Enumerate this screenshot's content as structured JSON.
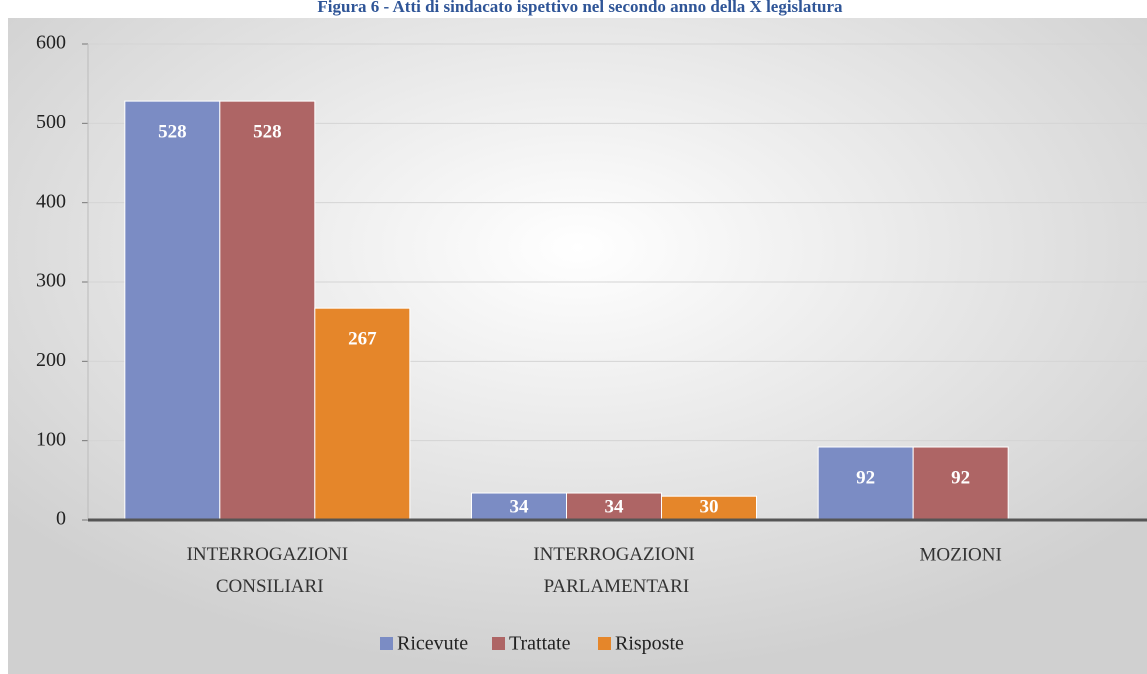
{
  "chart_data": {
    "type": "bar",
    "title": "Figura 6 - Atti di sindacato ispettivo nel secondo anno della X legislatura",
    "categories": [
      "INTERROGAZIONI CONSILIARI",
      "INTERROGAZIONI PARLAMENTARI",
      "MOZIONI"
    ],
    "series": [
      {
        "name": "Ricevute",
        "color": "#7b8cc4",
        "values": [
          528,
          34,
          92
        ]
      },
      {
        "name": "Trattate",
        "color": "#ae6565",
        "values": [
          528,
          34,
          92
        ]
      },
      {
        "name": "Risposte",
        "color": "#e5862a",
        "values": [
          267,
          30,
          null
        ]
      }
    ],
    "ylim": [
      0,
      600
    ],
    "yticks": [
      0,
      100,
      200,
      300,
      400,
      500,
      600
    ],
    "grid": true,
    "legend": "bottom"
  }
}
